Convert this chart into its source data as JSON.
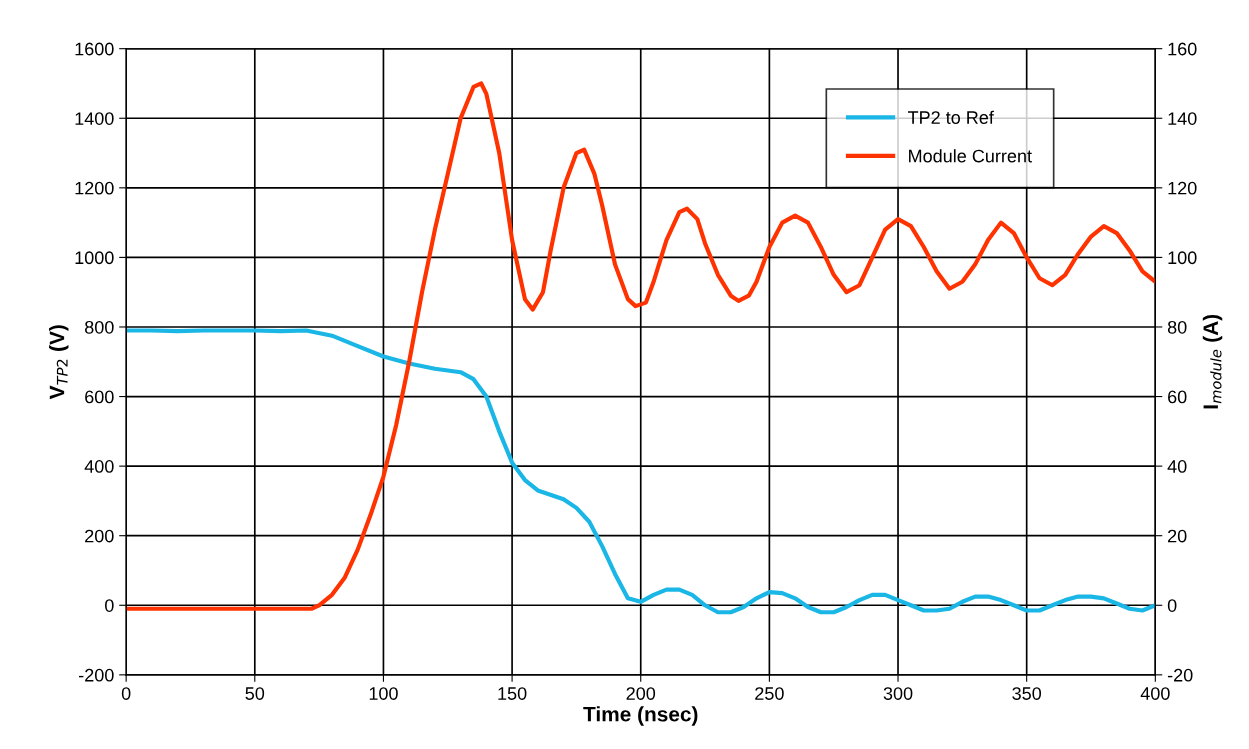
{
  "chart_data": {
    "type": "line",
    "xlabel": "Time (nsec)",
    "ylabel": "V$_{TP2}$ (V)",
    "y2label": "I$_{module}$ (A)",
    "xlim": [
      0,
      400
    ],
    "xticks": [
      0,
      50,
      100,
      150,
      200,
      250,
      300,
      350,
      400
    ],
    "ylim": [
      -200,
      1600
    ],
    "yticks": [
      -200,
      0,
      200,
      400,
      600,
      800,
      1000,
      1200,
      1400,
      1600
    ],
    "y2lim": [
      -20,
      160
    ],
    "y2ticks": [
      -20,
      0,
      20,
      40,
      60,
      80,
      100,
      120,
      140,
      160
    ],
    "grid": true,
    "legend": "top right",
    "marker": "none",
    "line_style": "solid",
    "series": [
      {
        "name": "TP2 to Ref",
        "color": "#1ab6e6",
        "x": [
          0,
          10,
          20,
          30,
          40,
          50,
          60,
          70,
          80,
          90,
          100,
          110,
          120,
          130,
          135,
          140,
          145,
          150,
          155,
          160,
          170,
          175,
          180,
          185,
          190,
          195,
          200,
          205,
          210,
          215,
          220,
          225,
          230,
          235,
          240,
          245,
          250,
          255,
          260,
          265,
          270,
          275,
          280,
          285,
          290,
          295,
          300,
          305,
          310,
          315,
          320,
          325,
          330,
          335,
          340,
          345,
          350,
          355,
          360,
          365,
          370,
          375,
          380,
          385,
          390,
          395,
          400
        ],
        "values": [
          790,
          790,
          788,
          790,
          790,
          790,
          788,
          790,
          775,
          745,
          715,
          695,
          680,
          670,
          650,
          600,
          500,
          410,
          360,
          330,
          305,
          280,
          240,
          170,
          90,
          20,
          10,
          30,
          45,
          45,
          30,
          0,
          -20,
          -20,
          -5,
          20,
          38,
          35,
          20,
          -5,
          -20,
          -20,
          -5,
          15,
          30,
          30,
          15,
          0,
          -15,
          -15,
          -10,
          10,
          25,
          25,
          15,
          0,
          -15,
          -15,
          0,
          15,
          25,
          25,
          20,
          5,
          -10,
          -15,
          0
        ]
      },
      {
        "name": "Module Current",
        "color": "#ff3300",
        "axis": "y2",
        "x": [
          0,
          10,
          20,
          30,
          40,
          50,
          60,
          72,
          75,
          80,
          85,
          90,
          95,
          100,
          105,
          110,
          115,
          120,
          125,
          130,
          135,
          138,
          140,
          145,
          150,
          155,
          158,
          162,
          165,
          170,
          175,
          178,
          182,
          185,
          190,
          195,
          198,
          202,
          205,
          210,
          215,
          218,
          222,
          225,
          230,
          235,
          238,
          242,
          245,
          250,
          255,
          260,
          265,
          270,
          275,
          280,
          285,
          290,
          295,
          300,
          305,
          310,
          315,
          320,
          325,
          330,
          335,
          340,
          345,
          350,
          355,
          360,
          365,
          370,
          375,
          380,
          385,
          390,
          395,
          400
        ],
        "values": [
          -1,
          -1,
          -1,
          -1,
          -1,
          -1,
          -1,
          -1,
          0,
          3,
          8,
          16,
          26,
          37,
          52,
          70,
          90,
          108,
          124,
          140,
          149,
          150,
          147,
          130,
          105,
          88,
          85,
          90,
          102,
          120,
          130,
          131,
          124,
          115,
          98,
          88,
          86,
          87,
          93,
          105,
          113,
          114,
          111,
          104,
          95,
          89,
          87.5,
          89,
          93,
          103,
          110,
          112,
          110,
          103,
          95,
          90,
          92,
          100,
          108,
          111,
          109,
          103,
          96,
          91,
          93,
          98,
          105,
          110,
          107,
          100,
          94,
          92,
          95,
          101,
          106,
          109,
          107,
          102,
          96,
          93
        ]
      }
    ]
  }
}
